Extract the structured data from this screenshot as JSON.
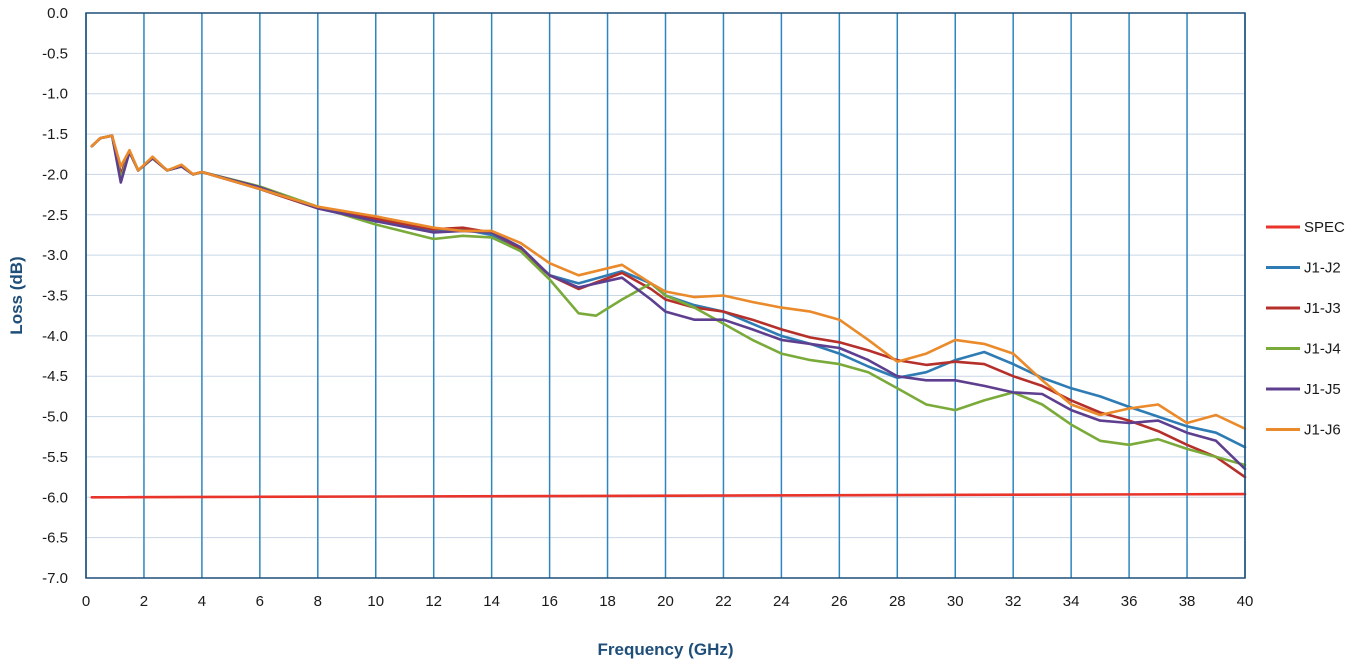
{
  "chart_data": {
    "type": "line",
    "title": "",
    "xlabel": "Frequency (GHz)",
    "ylabel": "Loss (dB)",
    "xlim": [
      0,
      40
    ],
    "ylim": [
      -7.0,
      0.0
    ],
    "x_ticks": [
      "0",
      "2",
      "4",
      "6",
      "8",
      "10",
      "12",
      "14",
      "16",
      "18",
      "20",
      "22",
      "24",
      "26",
      "28",
      "30",
      "32",
      "34",
      "36",
      "38",
      "40"
    ],
    "y_ticks": [
      "0.0",
      "-0.5",
      "-1.0",
      "-1.5",
      "-2.0",
      "-2.5",
      "-3.0",
      "-3.5",
      "-4.0",
      "-4.5",
      "-5.0",
      "-5.5",
      "-6.0",
      "-6.5",
      "-7.0"
    ],
    "grid": "vertical major gridlines (blue), horizontal light gridlines",
    "legend_position": "right",
    "colors": {
      "grid_vertical": "#2e86c1",
      "grid_horizontal": "#c8d6e5",
      "axis": "#1f4e79"
    },
    "series": [
      {
        "name": "SPEC",
        "color": "#e8342b",
        "points": [
          [
            0.2,
            -6.0
          ],
          [
            40,
            -5.96
          ]
        ]
      },
      {
        "name": "J1-J2",
        "color": "#2e7cb3",
        "points": [
          [
            0.2,
            -1.65
          ],
          [
            0.5,
            -1.55
          ],
          [
            0.9,
            -1.52
          ],
          [
            1.2,
            -2.0
          ],
          [
            1.5,
            -1.72
          ],
          [
            1.8,
            -1.95
          ],
          [
            2.3,
            -1.8
          ],
          [
            2.8,
            -1.95
          ],
          [
            3.3,
            -1.9
          ],
          [
            3.7,
            -2.0
          ],
          [
            4,
            -1.97
          ],
          [
            6,
            -2.18
          ],
          [
            8,
            -2.42
          ],
          [
            10,
            -2.58
          ],
          [
            12,
            -2.7
          ],
          [
            13,
            -2.68
          ],
          [
            14,
            -2.75
          ],
          [
            15,
            -2.95
          ],
          [
            16,
            -3.25
          ],
          [
            17,
            -3.35
          ],
          [
            18.5,
            -3.2
          ],
          [
            19.5,
            -3.35
          ],
          [
            20,
            -3.5
          ],
          [
            21,
            -3.62
          ],
          [
            22,
            -3.7
          ],
          [
            23,
            -3.85
          ],
          [
            24,
            -4.0
          ],
          [
            25,
            -4.1
          ],
          [
            26,
            -4.22
          ],
          [
            27,
            -4.38
          ],
          [
            28,
            -4.52
          ],
          [
            29,
            -4.45
          ],
          [
            30,
            -4.3
          ],
          [
            31,
            -4.2
          ],
          [
            32,
            -4.35
          ],
          [
            33,
            -4.52
          ],
          [
            34,
            -4.65
          ],
          [
            35,
            -4.75
          ],
          [
            36,
            -4.88
          ],
          [
            37,
            -5.0
          ],
          [
            38,
            -5.12
          ],
          [
            39,
            -5.2
          ],
          [
            40,
            -5.38
          ]
        ]
      },
      {
        "name": "J1-J3",
        "color": "#b5302a",
        "points": [
          [
            0.2,
            -1.65
          ],
          [
            0.5,
            -1.55
          ],
          [
            0.9,
            -1.52
          ],
          [
            1.2,
            -2.0
          ],
          [
            1.5,
            -1.72
          ],
          [
            1.8,
            -1.95
          ],
          [
            2.3,
            -1.8
          ],
          [
            2.8,
            -1.95
          ],
          [
            3.3,
            -1.9
          ],
          [
            3.7,
            -2.0
          ],
          [
            4,
            -1.97
          ],
          [
            6,
            -2.18
          ],
          [
            8,
            -2.42
          ],
          [
            10,
            -2.55
          ],
          [
            12,
            -2.68
          ],
          [
            13,
            -2.66
          ],
          [
            14,
            -2.72
          ],
          [
            15,
            -2.92
          ],
          [
            16,
            -3.25
          ],
          [
            17,
            -3.42
          ],
          [
            18.5,
            -3.22
          ],
          [
            19.5,
            -3.42
          ],
          [
            20,
            -3.55
          ],
          [
            21,
            -3.65
          ],
          [
            22,
            -3.7
          ],
          [
            23,
            -3.8
          ],
          [
            24,
            -3.92
          ],
          [
            25,
            -4.02
          ],
          [
            26,
            -4.08
          ],
          [
            27,
            -4.18
          ],
          [
            28,
            -4.3
          ],
          [
            29,
            -4.36
          ],
          [
            30,
            -4.32
          ],
          [
            31,
            -4.35
          ],
          [
            32,
            -4.5
          ],
          [
            33,
            -4.62
          ],
          [
            34,
            -4.8
          ],
          [
            35,
            -4.95
          ],
          [
            36,
            -5.05
          ],
          [
            37,
            -5.18
          ],
          [
            38,
            -5.35
          ],
          [
            39,
            -5.5
          ],
          [
            40,
            -5.75
          ]
        ]
      },
      {
        "name": "J1-J4",
        "color": "#7aaa3a",
        "points": [
          [
            0.2,
            -1.65
          ],
          [
            0.5,
            -1.55
          ],
          [
            0.9,
            -1.52
          ],
          [
            1.2,
            -2.05
          ],
          [
            1.5,
            -1.72
          ],
          [
            1.8,
            -1.95
          ],
          [
            2.3,
            -1.8
          ],
          [
            2.8,
            -1.95
          ],
          [
            3.3,
            -1.9
          ],
          [
            3.7,
            -2.0
          ],
          [
            4,
            -1.97
          ],
          [
            6,
            -2.15
          ],
          [
            8,
            -2.4
          ],
          [
            10,
            -2.62
          ],
          [
            12,
            -2.8
          ],
          [
            13,
            -2.76
          ],
          [
            14,
            -2.78
          ],
          [
            15,
            -2.95
          ],
          [
            16,
            -3.3
          ],
          [
            17,
            -3.72
          ],
          [
            17.6,
            -3.75
          ],
          [
            18.5,
            -3.55
          ],
          [
            19.5,
            -3.35
          ],
          [
            20,
            -3.5
          ],
          [
            21,
            -3.65
          ],
          [
            22,
            -3.85
          ],
          [
            23,
            -4.05
          ],
          [
            24,
            -4.22
          ],
          [
            25,
            -4.3
          ],
          [
            26,
            -4.35
          ],
          [
            27,
            -4.45
          ],
          [
            28,
            -4.65
          ],
          [
            29,
            -4.85
          ],
          [
            30,
            -4.92
          ],
          [
            31,
            -4.8
          ],
          [
            32,
            -4.7
          ],
          [
            33,
            -4.85
          ],
          [
            34,
            -5.1
          ],
          [
            35,
            -5.3
          ],
          [
            36,
            -5.35
          ],
          [
            37,
            -5.28
          ],
          [
            38,
            -5.4
          ],
          [
            39,
            -5.5
          ],
          [
            40,
            -5.6
          ]
        ]
      },
      {
        "name": "J1-J5",
        "color": "#5e3f8f",
        "points": [
          [
            0.2,
            -1.65
          ],
          [
            0.5,
            -1.55
          ],
          [
            0.9,
            -1.52
          ],
          [
            1.2,
            -2.1
          ],
          [
            1.5,
            -1.72
          ],
          [
            1.8,
            -1.95
          ],
          [
            2.3,
            -1.8
          ],
          [
            2.8,
            -1.95
          ],
          [
            3.3,
            -1.9
          ],
          [
            3.7,
            -2.0
          ],
          [
            4,
            -1.97
          ],
          [
            6,
            -2.16
          ],
          [
            8,
            -2.42
          ],
          [
            10,
            -2.58
          ],
          [
            12,
            -2.72
          ],
          [
            13,
            -2.7
          ],
          [
            14,
            -2.72
          ],
          [
            15,
            -2.9
          ],
          [
            16,
            -3.25
          ],
          [
            17,
            -3.4
          ],
          [
            18.5,
            -3.28
          ],
          [
            19.5,
            -3.55
          ],
          [
            20,
            -3.7
          ],
          [
            21,
            -3.8
          ],
          [
            22,
            -3.8
          ],
          [
            23,
            -3.92
          ],
          [
            24,
            -4.05
          ],
          [
            25,
            -4.1
          ],
          [
            26,
            -4.15
          ],
          [
            27,
            -4.3
          ],
          [
            28,
            -4.5
          ],
          [
            29,
            -4.55
          ],
          [
            30,
            -4.55
          ],
          [
            31,
            -4.62
          ],
          [
            32,
            -4.7
          ],
          [
            33,
            -4.72
          ],
          [
            34,
            -4.92
          ],
          [
            35,
            -5.05
          ],
          [
            36,
            -5.08
          ],
          [
            37,
            -5.05
          ],
          [
            38,
            -5.2
          ],
          [
            39,
            -5.3
          ],
          [
            40,
            -5.65
          ]
        ]
      },
      {
        "name": "J1-J6",
        "color": "#ea8a2a",
        "points": [
          [
            0.2,
            -1.65
          ],
          [
            0.5,
            -1.55
          ],
          [
            0.9,
            -1.52
          ],
          [
            1.2,
            -1.9
          ],
          [
            1.5,
            -1.7
          ],
          [
            1.8,
            -1.95
          ],
          [
            2.3,
            -1.78
          ],
          [
            2.8,
            -1.95
          ],
          [
            3.3,
            -1.88
          ],
          [
            3.7,
            -2.0
          ],
          [
            4,
            -1.97
          ],
          [
            6,
            -2.18
          ],
          [
            8,
            -2.4
          ],
          [
            10,
            -2.52
          ],
          [
            12,
            -2.66
          ],
          [
            13,
            -2.7
          ],
          [
            14,
            -2.7
          ],
          [
            15,
            -2.85
          ],
          [
            16,
            -3.1
          ],
          [
            17,
            -3.25
          ],
          [
            18.5,
            -3.12
          ],
          [
            19.5,
            -3.35
          ],
          [
            20,
            -3.45
          ],
          [
            21,
            -3.52
          ],
          [
            22,
            -3.5
          ],
          [
            23,
            -3.58
          ],
          [
            24,
            -3.65
          ],
          [
            25,
            -3.7
          ],
          [
            26,
            -3.8
          ],
          [
            27,
            -4.05
          ],
          [
            28,
            -4.32
          ],
          [
            29,
            -4.22
          ],
          [
            30,
            -4.05
          ],
          [
            31,
            -4.1
          ],
          [
            32,
            -4.22
          ],
          [
            33,
            -4.55
          ],
          [
            34,
            -4.85
          ],
          [
            35,
            -4.98
          ],
          [
            36,
            -4.9
          ],
          [
            37,
            -4.85
          ],
          [
            38,
            -5.08
          ],
          [
            39,
            -4.98
          ],
          [
            40,
            -5.15
          ]
        ]
      }
    ]
  }
}
